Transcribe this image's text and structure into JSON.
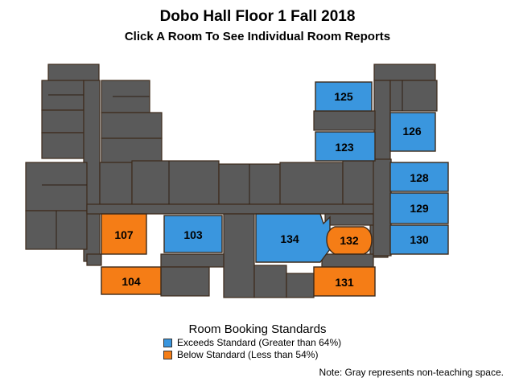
{
  "header": {
    "title": "Dobo Hall Floor 1 Fall 2018",
    "subtitle": "Click A Room To See Individual Room Reports"
  },
  "colors": {
    "exceeds": "#3a96de",
    "below": "#f57d16",
    "non_teaching": "#5a5a5a"
  },
  "rooms": [
    {
      "id": "125",
      "status": "exceeds"
    },
    {
      "id": "126",
      "status": "exceeds"
    },
    {
      "id": "123",
      "status": "exceeds"
    },
    {
      "id": "128",
      "status": "exceeds"
    },
    {
      "id": "129",
      "status": "exceeds"
    },
    {
      "id": "130",
      "status": "exceeds"
    },
    {
      "id": "107",
      "status": "below"
    },
    {
      "id": "103",
      "status": "exceeds"
    },
    {
      "id": "134",
      "status": "exceeds"
    },
    {
      "id": "132",
      "status": "below"
    },
    {
      "id": "104",
      "status": "below"
    },
    {
      "id": "131",
      "status": "below"
    }
  ],
  "legend": {
    "title": "Room Booking Standards",
    "exceeds_label": "Exceeds Standard (Greater than 64%)",
    "below_label": "Below Standard (Less than 54%)"
  },
  "note": "Note: Gray represents non-teaching space."
}
